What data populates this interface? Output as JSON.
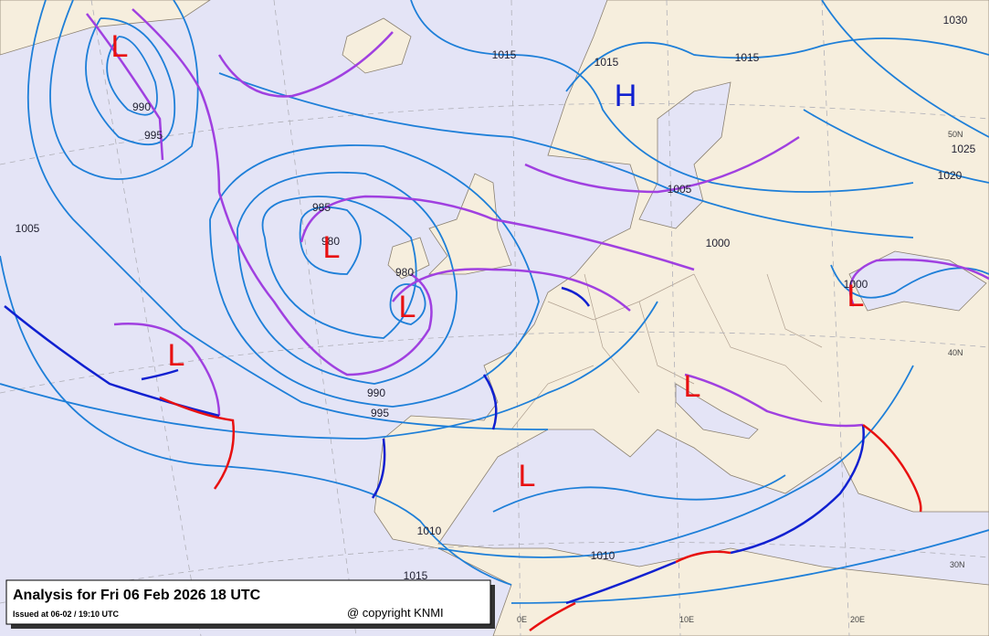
{
  "title_box": {
    "title": "Analysis for Fri 06 Feb 2026 18 UTC",
    "issued": "Issued at 06-02 / 19:10 UTC",
    "copyright": "@ copyright KNMI"
  },
  "isobar_labels": [
    "1015",
    "1015",
    "1015",
    "1030",
    "1025",
    "1020",
    "1005",
    "1000",
    "990",
    "995",
    "1005",
    "985",
    "980",
    "980",
    "1000",
    "990",
    "995",
    "1010",
    "1010",
    "1015"
  ],
  "pressure_centers": [
    "L",
    "H",
    "L",
    "L",
    "L",
    "L",
    "L",
    "L"
  ],
  "graticule_labels": [
    "50N",
    "40N",
    "30N",
    "0E",
    "10E",
    "20E"
  ]
}
